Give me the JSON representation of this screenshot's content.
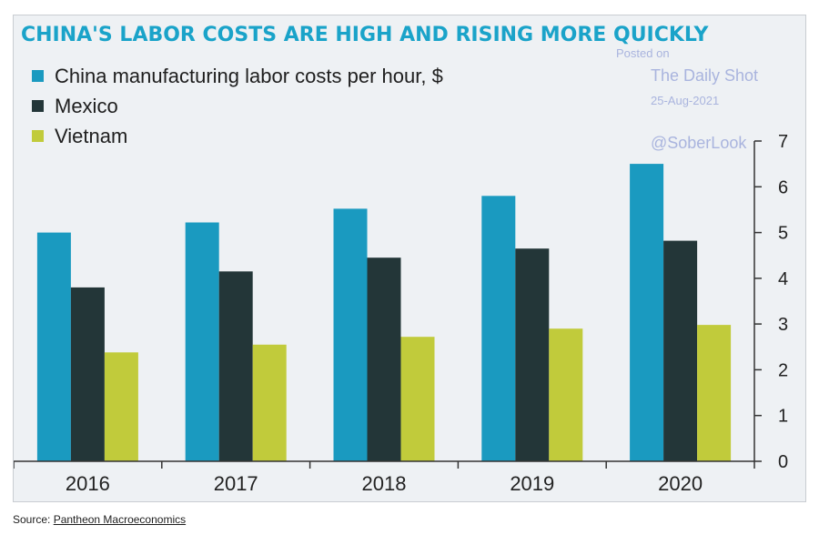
{
  "chart_data": {
    "type": "bar",
    "title": "CHINA'S LABOR COSTS ARE HIGH AND RISING MORE QUICKLY",
    "categories": [
      "2016",
      "2017",
      "2018",
      "2019",
      "2020"
    ],
    "series": [
      {
        "name": "China manufacturing labor costs per hour, $",
        "color": "#1a9ac0",
        "values": [
          5.0,
          5.22,
          5.52,
          5.8,
          6.5
        ]
      },
      {
        "name": "Mexico",
        "color": "#233638",
        "values": [
          3.8,
          4.15,
          4.45,
          4.65,
          4.82
        ]
      },
      {
        "name": "Vietnam",
        "color": "#c1cb3b",
        "values": [
          2.38,
          2.55,
          2.72,
          2.9,
          2.98
        ]
      }
    ],
    "yticks": [
      "0",
      "1",
      "2",
      "3",
      "4",
      "5",
      "6",
      "7"
    ],
    "ylim": [
      0,
      7
    ],
    "grid": false,
    "legend": "top-left",
    "y_axis_side": "right"
  },
  "watermark": {
    "line1": "Posted on",
    "line2": "The Daily Shot",
    "line3": "25-Aug-2021",
    "line4": "@SoberLook"
  },
  "source": {
    "prefix": "Source: ",
    "link_text": "Pantheon Macroeconomics"
  }
}
